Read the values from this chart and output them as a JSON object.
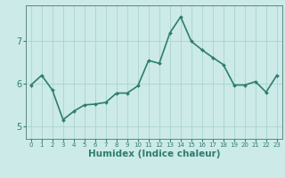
{
  "x": [
    0,
    1,
    2,
    3,
    4,
    5,
    6,
    7,
    8,
    9,
    10,
    11,
    12,
    13,
    14,
    15,
    16,
    17,
    18,
    19,
    20,
    21,
    22,
    23
  ],
  "y": [
    5.97,
    6.2,
    5.85,
    5.15,
    5.35,
    5.5,
    5.52,
    5.56,
    5.78,
    5.78,
    5.95,
    6.55,
    6.48,
    7.2,
    7.58,
    7.0,
    6.8,
    6.62,
    6.45,
    5.97,
    5.97,
    6.05,
    5.8,
    6.2
  ],
  "line_color": "#2e7d6e",
  "marker": "D",
  "marker_size": 2.0,
  "bg_color": "#cceae8",
  "grid_color": "#aad4d0",
  "xlabel": "Humidex (Indice chaleur)",
  "xlabel_fontsize": 7.5,
  "yticks": [
    5,
    6,
    7
  ],
  "ylim": [
    4.7,
    7.85
  ],
  "xlim": [
    -0.5,
    23.5
  ],
  "line_width": 1.2,
  "tick_fontsize_x": 5.0,
  "tick_fontsize_y": 7.0
}
